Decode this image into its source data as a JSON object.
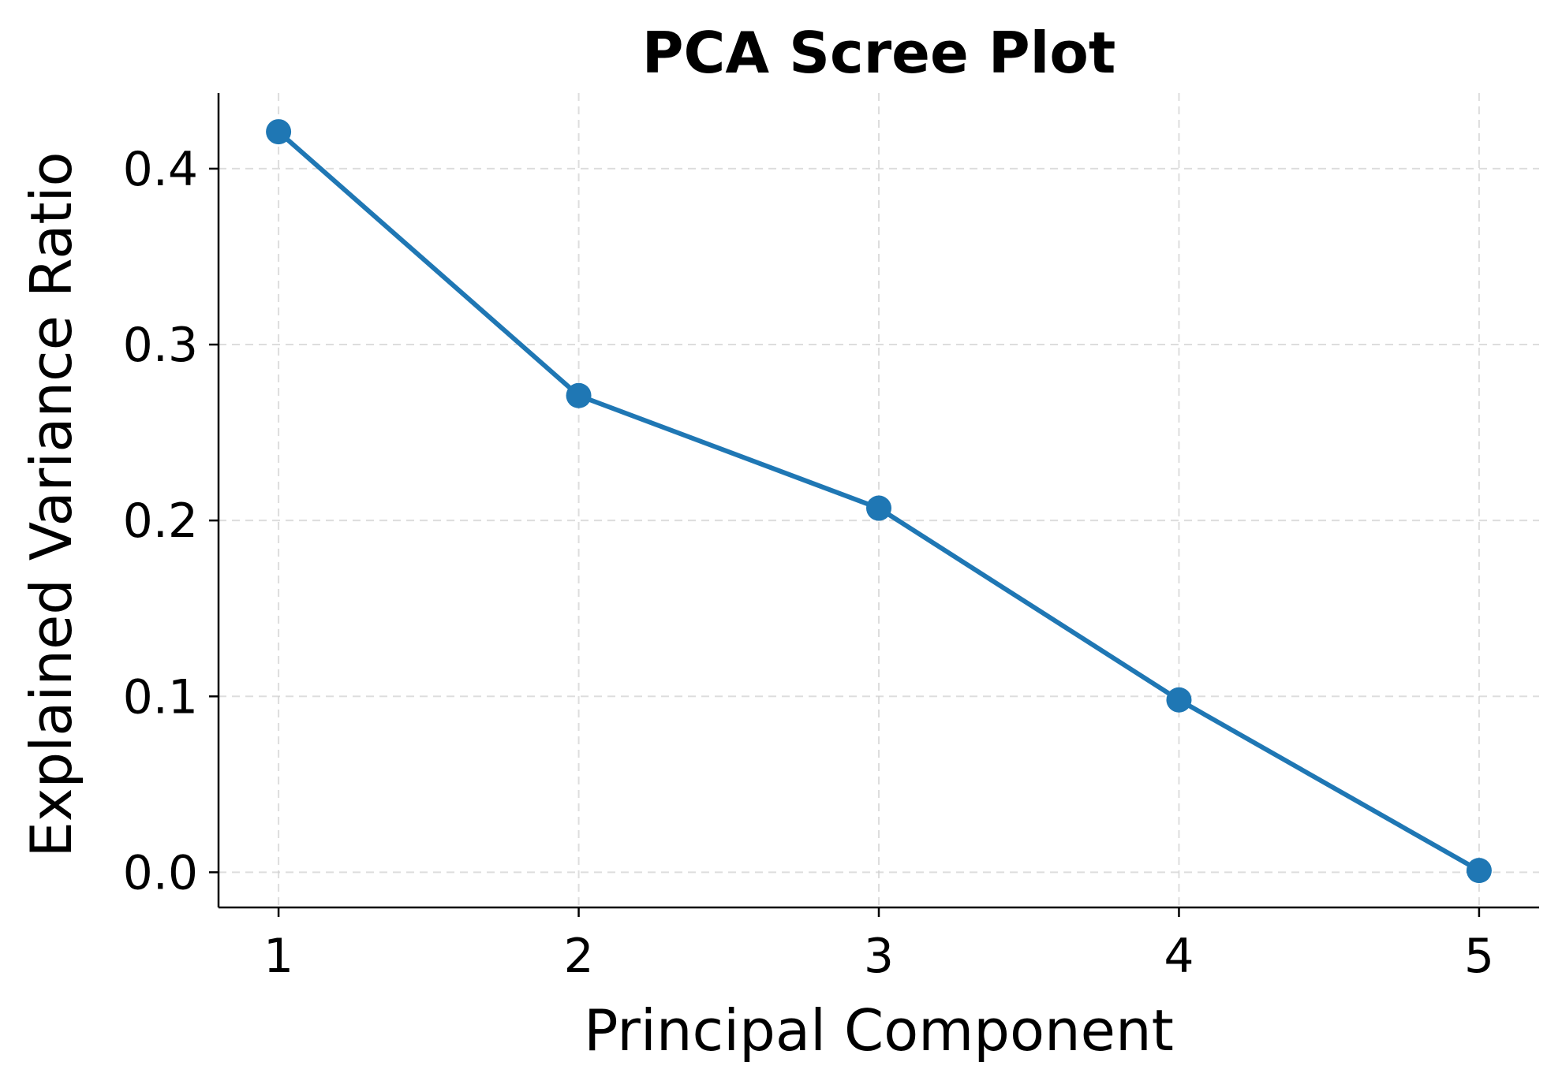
{
  "chart_data": {
    "type": "line",
    "title": "PCA Scree Plot",
    "xlabel": "Principal Component",
    "ylabel": "Explained Variance Ratio",
    "x": [
      1,
      2,
      3,
      4,
      5
    ],
    "series": [
      {
        "values": [
          0.421,
          0.271,
          0.207,
          0.098,
          0.001
        ]
      }
    ],
    "xticks": [
      "1",
      "2",
      "3",
      "4",
      "5"
    ],
    "yticks": [
      "0.0",
      "0.1",
      "0.2",
      "0.3",
      "0.4"
    ],
    "xlim": [
      0.8,
      5.2
    ],
    "ylim": [
      -0.02,
      0.443
    ],
    "grid": true,
    "color": "#1f77b4",
    "marker": "circle"
  }
}
